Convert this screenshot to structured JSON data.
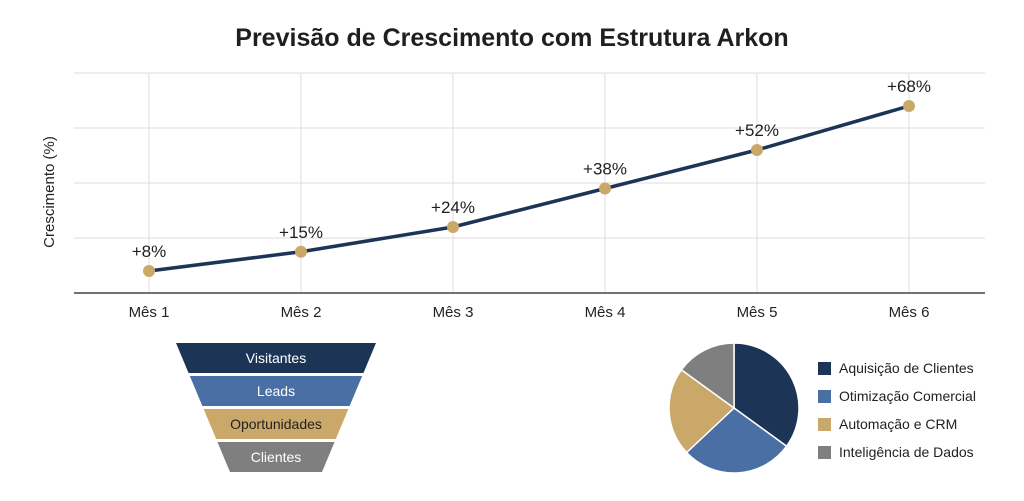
{
  "chart_data": [
    {
      "type": "line",
      "title": "Previsão de Crescimento com Estrutura Arkon",
      "xlabel": "",
      "ylabel": "Crescimento (%)",
      "categories": [
        "Mês 1",
        "Mês 2",
        "Mês 3",
        "Mês 4",
        "Mês 5",
        "Mês 6"
      ],
      "values": [
        8,
        15,
        24,
        38,
        52,
        68
      ],
      "data_labels": [
        "+8%",
        "+15%",
        "+24%",
        "+38%",
        "+52%",
        "+68%"
      ],
      "ylim": [
        0,
        80
      ],
      "grid": true,
      "colors": {
        "line": "#1c3557",
        "marker": "#c9a86a",
        "grid": "#dddddd"
      }
    },
    {
      "type": "funnel",
      "stages": [
        {
          "label": "Visitantes",
          "color": "#1c3557"
        },
        {
          "label": "Leads",
          "color": "#4a6fa5"
        },
        {
          "label": "Oportunidades",
          "color": "#c9a86a"
        },
        {
          "label": "Clientes",
          "color": "#7f7f7f"
        }
      ]
    },
    {
      "type": "pie",
      "slices": [
        {
          "label": "Aquisição de Clientes",
          "value": 35,
          "color": "#1c3557"
        },
        {
          "label": "Otimização Comercial",
          "value": 28,
          "color": "#4a6fa5"
        },
        {
          "label": "Automação e CRM",
          "value": 22,
          "color": "#c9a86a"
        },
        {
          "label": "Inteligência de Dados",
          "value": 15,
          "color": "#7f7f7f"
        }
      ],
      "legend": "right"
    }
  ]
}
